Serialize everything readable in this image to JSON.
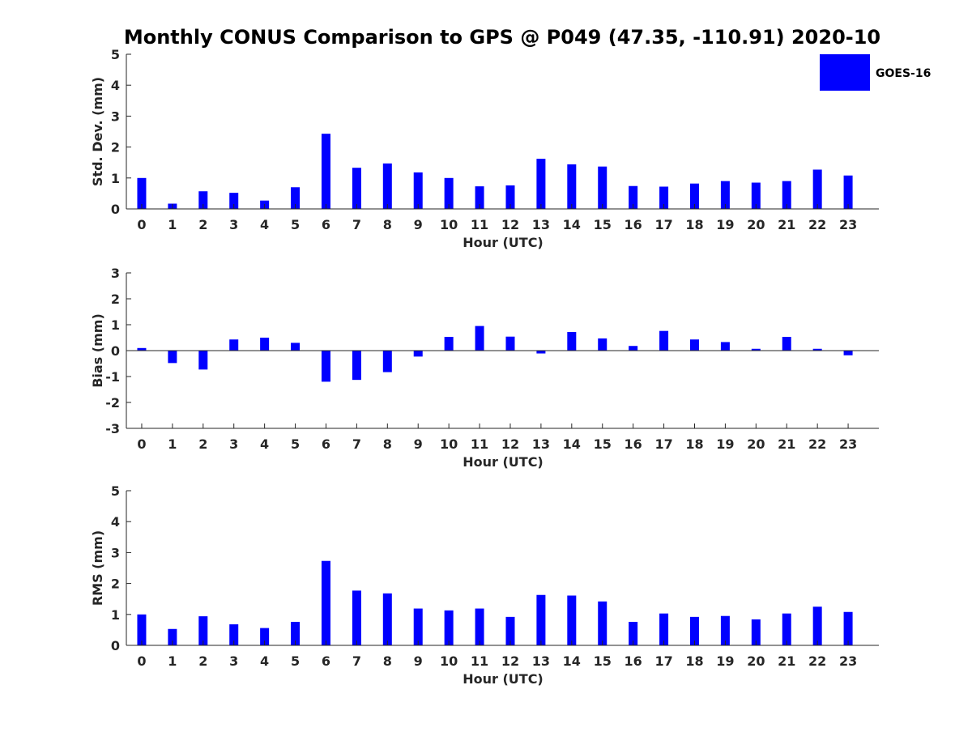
{
  "figure": {
    "title": "Monthly CONUS Comparison to GPS @ P049 (47.35, -110.91) 2020-10"
  },
  "legend": {
    "label": "GOES-16",
    "color": "#0000ff",
    "placement": "top-right"
  },
  "chart_data": [
    {
      "type": "bar",
      "xlabel": "Hour (UTC)",
      "ylabel": "Std. Dev. (mm)",
      "ylim": [
        0,
        5
      ],
      "yticks": [
        "0",
        "1",
        "2",
        "3",
        "4",
        "5"
      ],
      "categories": [
        "0",
        "1",
        "2",
        "3",
        "4",
        "5",
        "6",
        "7",
        "8",
        "9",
        "10",
        "11",
        "12",
        "13",
        "14",
        "15",
        "16",
        "17",
        "18",
        "19",
        "20",
        "21",
        "22",
        "23"
      ],
      "series": [
        {
          "name": "GOES-16",
          "color": "#0000ff",
          "values": [
            1.0,
            0.17,
            0.57,
            0.52,
            0.27,
            0.7,
            2.43,
            1.33,
            1.47,
            1.18,
            1.0,
            0.73,
            0.76,
            1.62,
            1.44,
            1.37,
            0.74,
            0.72,
            0.82,
            0.9,
            0.85,
            0.9,
            1.27,
            1.08
          ]
        }
      ]
    },
    {
      "type": "bar",
      "xlabel": "Hour (UTC)",
      "ylabel": "Bias (mm)",
      "ylim": [
        -3,
        3
      ],
      "yticks": [
        "-3",
        "-2",
        "-1",
        "0",
        "1",
        "2",
        "3"
      ],
      "categories": [
        "0",
        "1",
        "2",
        "3",
        "4",
        "5",
        "6",
        "7",
        "8",
        "9",
        "10",
        "11",
        "12",
        "13",
        "14",
        "15",
        "16",
        "17",
        "18",
        "19",
        "20",
        "21",
        "22",
        "23"
      ],
      "series": [
        {
          "name": "GOES-16",
          "color": "#0000ff",
          "values": [
            0.1,
            -0.48,
            -0.73,
            0.43,
            0.5,
            0.3,
            -1.2,
            -1.13,
            -0.83,
            -0.23,
            0.53,
            0.95,
            0.54,
            -0.11,
            0.72,
            0.47,
            0.18,
            0.76,
            0.43,
            0.33,
            0.07,
            0.53,
            0.07,
            -0.18
          ]
        }
      ]
    },
    {
      "type": "bar",
      "xlabel": "Hour (UTC)",
      "ylabel": "RMS (mm)",
      "ylim": [
        0,
        5
      ],
      "yticks": [
        "0",
        "1",
        "2",
        "3",
        "4",
        "5"
      ],
      "categories": [
        "0",
        "1",
        "2",
        "3",
        "4",
        "5",
        "6",
        "7",
        "8",
        "9",
        "10",
        "11",
        "12",
        "13",
        "14",
        "15",
        "16",
        "17",
        "18",
        "19",
        "20",
        "21",
        "22",
        "23"
      ],
      "series": [
        {
          "name": "GOES-16",
          "color": "#0000ff",
          "values": [
            1.0,
            0.53,
            0.94,
            0.68,
            0.56,
            0.76,
            2.73,
            1.77,
            1.68,
            1.19,
            1.13,
            1.19,
            0.92,
            1.63,
            1.61,
            1.42,
            0.76,
            1.03,
            0.92,
            0.95,
            0.84,
            1.03,
            1.25,
            1.08
          ]
        }
      ]
    }
  ]
}
